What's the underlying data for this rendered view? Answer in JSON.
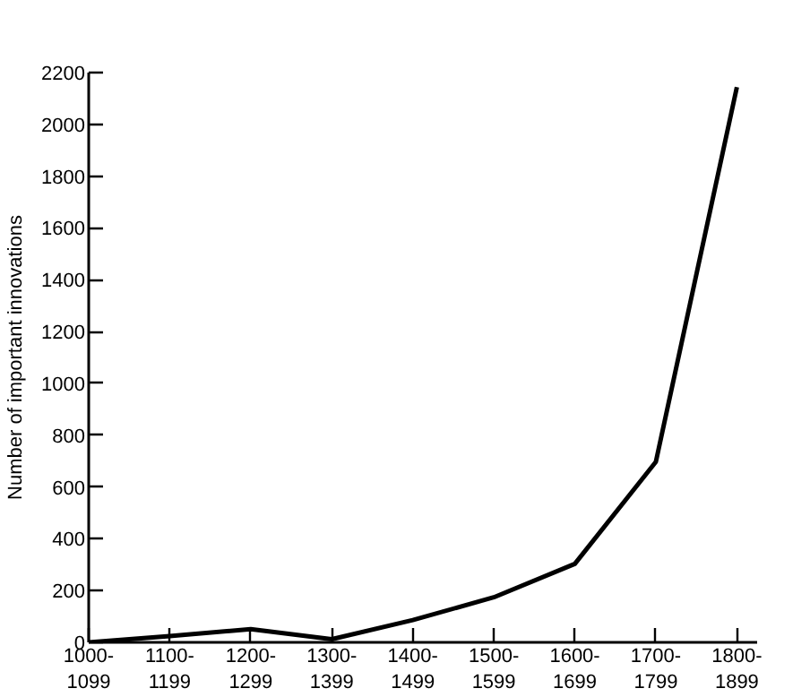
{
  "chart_data": {
    "type": "line",
    "ylabel": "Number of important innovations",
    "categories": [
      "1000-\n1099",
      "1100-\n1199",
      "1200-\n1299",
      "1300-\n1399",
      "1400-\n1499",
      "1500-\n1599",
      "1600-\n1699",
      "1700-\n1799",
      "1800-\n1899"
    ],
    "series": [
      {
        "color": "#000000",
        "values": [
          0,
          24,
          51,
          12,
          86,
          174,
          303,
          697,
          2144
        ]
      }
    ],
    "ylim": [
      0,
      2200
    ],
    "yticks": [
      0,
      200,
      400,
      600,
      800,
      1000,
      1200,
      1400,
      1600,
      1800,
      2000,
      2200
    ],
    "grid": false,
    "marker": "none",
    "line_style": "solid"
  }
}
